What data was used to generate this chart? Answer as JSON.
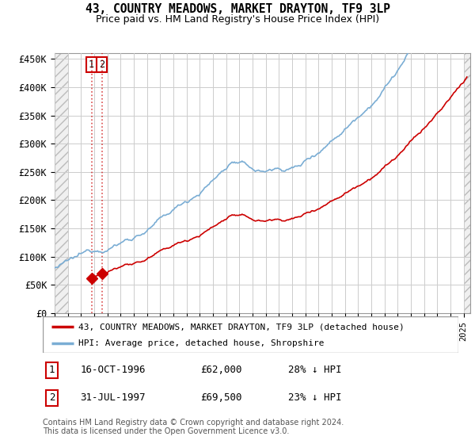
{
  "title": "43, COUNTRY MEADOWS, MARKET DRAYTON, TF9 3LP",
  "subtitle": "Price paid vs. HM Land Registry's House Price Index (HPI)",
  "ylabel_ticks": [
    "£0",
    "£50K",
    "£100K",
    "£150K",
    "£200K",
    "£250K",
    "£300K",
    "£350K",
    "£400K",
    "£450K"
  ],
  "ytick_vals": [
    0,
    50000,
    100000,
    150000,
    200000,
    250000,
    300000,
    350000,
    400000,
    450000
  ],
  "ylim": [
    0,
    460000
  ],
  "xlim_start": 1994.0,
  "xlim_end": 2025.5,
  "hpi_color": "#7aadd4",
  "price_color": "#cc0000",
  "sale1_x": 1996.79,
  "sale1_y": 62000,
  "sale2_x": 1997.58,
  "sale2_y": 69500,
  "sale1_label": "16-OCT-1996",
  "sale1_price": "£62,000",
  "sale1_pct": "28% ↓ HPI",
  "sale2_label": "31-JUL-1997",
  "sale2_price": "£69,500",
  "sale2_pct": "23% ↓ HPI",
  "legend_line1": "43, COUNTRY MEADOWS, MARKET DRAYTON, TF9 3LP (detached house)",
  "legend_line2": "HPI: Average price, detached house, Shropshire",
  "footer": "Contains HM Land Registry data © Crown copyright and database right 2024.\nThis data is licensed under the Open Government Licence v3.0.",
  "grid_color": "#cccccc",
  "hatch_color": "#e8e8e8"
}
